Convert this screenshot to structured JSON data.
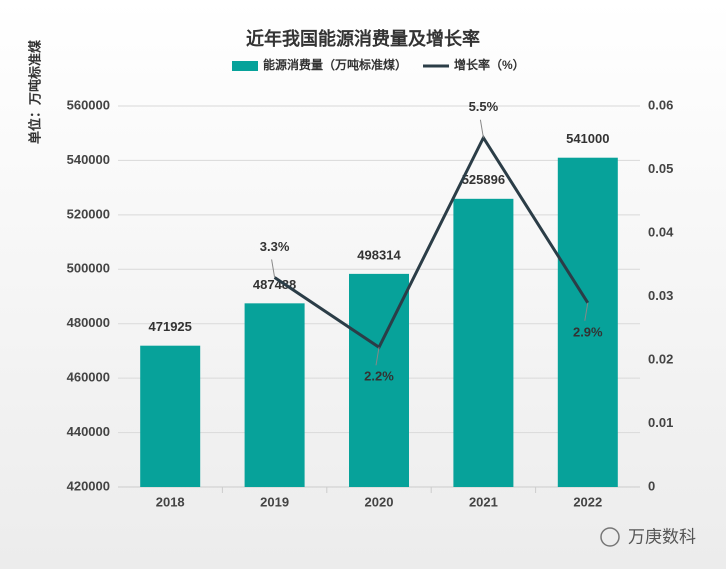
{
  "chart_data": {
    "type": "bar",
    "title": "近年我国能源消费量及增长率",
    "ylabel": "单位：万吨标准煤",
    "categories": [
      "2018",
      "2019",
      "2020",
      "2021",
      "2022"
    ],
    "series": [
      {
        "name": "能源消费量（万吨标准煤）",
        "type": "bar",
        "color": "#07a29a",
        "values": [
          471925,
          487488,
          498314,
          525896,
          541000
        ]
      },
      {
        "name": "增长率（%）",
        "type": "line",
        "axis": "y2",
        "color": "#2b3d47",
        "values": [
          null,
          0.033,
          0.022,
          0.055,
          0.029
        ],
        "value_labels": [
          null,
          "3.3%",
          "2.2%",
          "5.5%",
          "2.9%"
        ]
      }
    ],
    "ylim": [
      420000,
      560000
    ],
    "yticks": [
      420000,
      440000,
      460000,
      480000,
      500000,
      520000,
      540000,
      560000
    ],
    "y2lim": [
      0,
      0.06
    ],
    "y2ticks": [
      0,
      0.01,
      0.02,
      0.03,
      0.04,
      0.05,
      0.06
    ],
    "grid": true,
    "legend": "top"
  },
  "watermark": "万庚数科"
}
